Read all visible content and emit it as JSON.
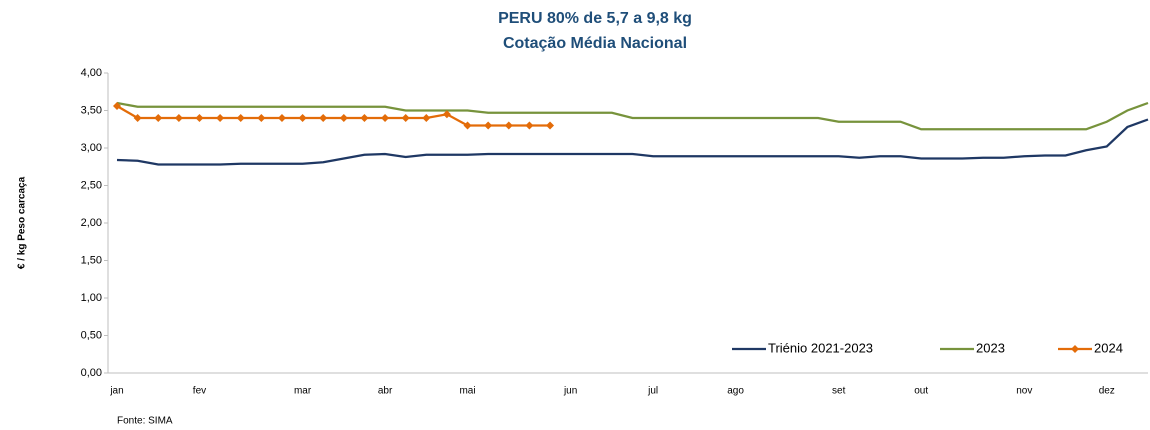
{
  "chart_data": {
    "type": "line",
    "title": "PERU 80% de 5,7 a 9,8 kg",
    "subtitle": "Cotação Média Nacional",
    "y_label": "€ / kg Peso carcaça",
    "source": "Fonte: SIMA",
    "categories": [
      "jan",
      null,
      null,
      null,
      "fev",
      null,
      null,
      null,
      null,
      "mar",
      null,
      null,
      null,
      "abr",
      null,
      null,
      null,
      "mai",
      null,
      null,
      null,
      null,
      "jun",
      null,
      null,
      null,
      "jul",
      null,
      null,
      null,
      "ago",
      null,
      null,
      null,
      null,
      "set",
      null,
      null,
      null,
      "out",
      null,
      null,
      null,
      null,
      "nov",
      null,
      null,
      null,
      "dez",
      null,
      null
    ],
    "series": [
      {
        "name": "Triénio 2021-2023",
        "color": "#1f3864",
        "marker": "none",
        "values": [
          2.84,
          2.83,
          2.78,
          2.78,
          2.78,
          2.78,
          2.79,
          2.79,
          2.79,
          2.79,
          2.81,
          2.86,
          2.91,
          2.92,
          2.88,
          2.91,
          2.91,
          2.91,
          2.92,
          2.92,
          2.92,
          2.92,
          2.92,
          2.92,
          2.92,
          2.92,
          2.89,
          2.89,
          2.89,
          2.89,
          2.89,
          2.89,
          2.89,
          2.89,
          2.89,
          2.89,
          2.87,
          2.89,
          2.89,
          2.86,
          2.86,
          2.86,
          2.87,
          2.87,
          2.89,
          2.9,
          2.9,
          2.97,
          3.02,
          3.28,
          3.38
        ]
      },
      {
        "name": "2023",
        "color": "#77933c",
        "marker": "none",
        "values": [
          3.6,
          3.55,
          3.55,
          3.55,
          3.55,
          3.55,
          3.55,
          3.55,
          3.55,
          3.55,
          3.55,
          3.55,
          3.55,
          3.55,
          3.5,
          3.5,
          3.5,
          3.5,
          3.47,
          3.47,
          3.47,
          3.47,
          3.47,
          3.47,
          3.47,
          3.4,
          3.4,
          3.4,
          3.4,
          3.4,
          3.4,
          3.4,
          3.4,
          3.4,
          3.4,
          3.35,
          3.35,
          3.35,
          3.35,
          3.25,
          3.25,
          3.25,
          3.25,
          3.25,
          3.25,
          3.25,
          3.25,
          3.25,
          3.35,
          3.5,
          3.6
        ]
      },
      {
        "name": "2024",
        "color": "#e36c09",
        "marker": "diamond",
        "values": [
          3.56,
          3.4,
          3.4,
          3.4,
          3.4,
          3.4,
          3.4,
          3.4,
          3.4,
          3.4,
          3.4,
          3.4,
          3.4,
          3.4,
          3.4,
          3.4,
          3.45,
          3.3,
          3.3,
          3.3,
          3.3,
          3.3,
          null,
          null,
          null,
          null,
          null,
          null,
          null,
          null,
          null,
          null,
          null,
          null,
          null,
          null,
          null,
          null,
          null,
          null,
          null,
          null,
          null,
          null,
          null,
          null,
          null,
          null,
          null,
          null,
          null
        ]
      }
    ],
    "ylim": [
      0,
      4
    ],
    "yticks": [
      {
        "value": 0,
        "label": "0,00"
      },
      {
        "value": 0.5,
        "label": "0,50"
      },
      {
        "value": 1,
        "label": "1,00"
      },
      {
        "value": 1.5,
        "label": "1,50"
      },
      {
        "value": 2,
        "label": "2,00"
      },
      {
        "value": 2.5,
        "label": "2,50"
      },
      {
        "value": 3,
        "label": "3,00"
      },
      {
        "value": 3.5,
        "label": "3,50"
      },
      {
        "value": 4,
        "label": "4,00"
      }
    ],
    "grid": false,
    "legend": "bottom-right"
  }
}
